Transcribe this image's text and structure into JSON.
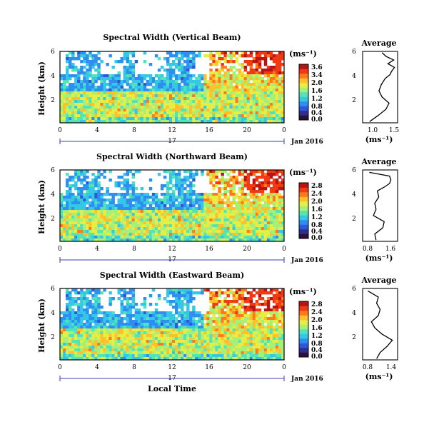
{
  "colors": {
    "background": "#ffffff",
    "colormap": [
      "#30103a",
      "#2b2f8f",
      "#2f58d6",
      "#2f8ff0",
      "#35c7e6",
      "#52e3b6",
      "#a6f07a",
      "#e6ee45",
      "#ffc02a",
      "#ff7a1c",
      "#f03a14",
      "#b81414"
    ]
  },
  "shared": {
    "xlabel": "Local Time",
    "date_label": "Jan 2016",
    "day_label": "17",
    "x_ticks": [
      "0",
      "4",
      "8",
      "12",
      "16",
      "20",
      "0"
    ],
    "ylabel": "Height (km)",
    "y_ticks": [
      "2",
      "4",
      "6"
    ],
    "unit_label": "(ms⁻¹)"
  },
  "chart_data": [
    {
      "type": "heatmap",
      "title": "Spectral Width (Vertical Beam)",
      "x_range": [
        0,
        24
      ],
      "y_range": [
        0.4,
        6.2
      ],
      "colorbar_ticks": [
        "3.6",
        "3.4",
        "2.0",
        "1.6",
        "1.2",
        "0.8",
        "0.4",
        "0.0"
      ],
      "colorbar_range": [
        0,
        3.6
      ],
      "profile": {
        "title": "Average",
        "x_ticks": [
          "1.0",
          "1.5"
        ],
        "y_ticks": [
          "2",
          "4",
          "6"
        ],
        "xlabel": "(ms⁻¹)",
        "xlim": [
          0.7,
          1.6
        ],
        "ylim": [
          0.4,
          6.2
        ],
        "heights": [
          0.5,
          1.0,
          1.5,
          2.0,
          2.5,
          3.0,
          3.5,
          4.0,
          4.3,
          4.6,
          4.9,
          5.2,
          5.5,
          5.8,
          6.1
        ],
        "values": [
          0.88,
          1.1,
          1.3,
          1.38,
          1.2,
          1.12,
          1.18,
          1.28,
          1.4,
          1.45,
          1.52,
          1.35,
          1.5,
          1.3,
          1.2
        ]
      }
    },
    {
      "type": "heatmap",
      "title": "Spectral Width (Northward Beam)",
      "x_range": [
        0,
        24
      ],
      "y_range": [
        0.4,
        6.2
      ],
      "colorbar_ticks": [
        "2.8",
        "2.4",
        "2.0",
        "1.6",
        "1.2",
        "0.8",
        "0.4",
        "0.0"
      ],
      "colorbar_range": [
        0,
        2.8
      ],
      "profile": {
        "title": "Average",
        "x_ticks": [
          "0.8",
          "1.6"
        ],
        "y_ticks": [
          "2",
          "4",
          "6"
        ],
        "xlabel": "(ms⁻¹)",
        "xlim": [
          0.5,
          1.8
        ],
        "ylim": [
          0.4,
          6.2
        ],
        "heights": [
          0.5,
          1.0,
          1.5,
          2.0,
          2.5,
          3.0,
          3.5,
          4.0,
          4.5,
          4.8,
          5.1,
          5.4,
          5.7,
          6.0
        ],
        "values": [
          1.0,
          0.95,
          1.25,
          1.3,
          0.9,
          1.0,
          0.95,
          1.1,
          1.05,
          1.3,
          1.5,
          1.55,
          1.5,
          0.75
        ]
      }
    },
    {
      "type": "heatmap",
      "title": "Spectral Width (Eastward Beam)",
      "x_range": [
        0,
        24
      ],
      "y_range": [
        0.4,
        6.2
      ],
      "colorbar_ticks": [
        "2.8",
        "2.4",
        "2.0",
        "1.6",
        "1.2",
        "0.8",
        "0.4",
        "0.0"
      ],
      "colorbar_range": [
        0,
        2.8
      ],
      "profile": {
        "title": "Average",
        "x_ticks": [
          "0.8",
          "1.4"
        ],
        "y_ticks": [
          "2",
          "4",
          "6"
        ],
        "xlabel": "(ms⁻¹)",
        "xlim": [
          0.6,
          1.6
        ],
        "ylim": [
          0.4,
          6.2
        ],
        "heights": [
          0.5,
          1.0,
          1.5,
          2.0,
          2.5,
          3.0,
          3.5,
          4.0,
          4.5,
          5.0,
          5.5,
          6.0
        ],
        "values": [
          1.0,
          1.1,
          1.3,
          1.45,
          1.15,
          0.95,
          0.85,
          1.05,
          1.1,
          1.0,
          1.05,
          0.75
        ]
      }
    }
  ]
}
